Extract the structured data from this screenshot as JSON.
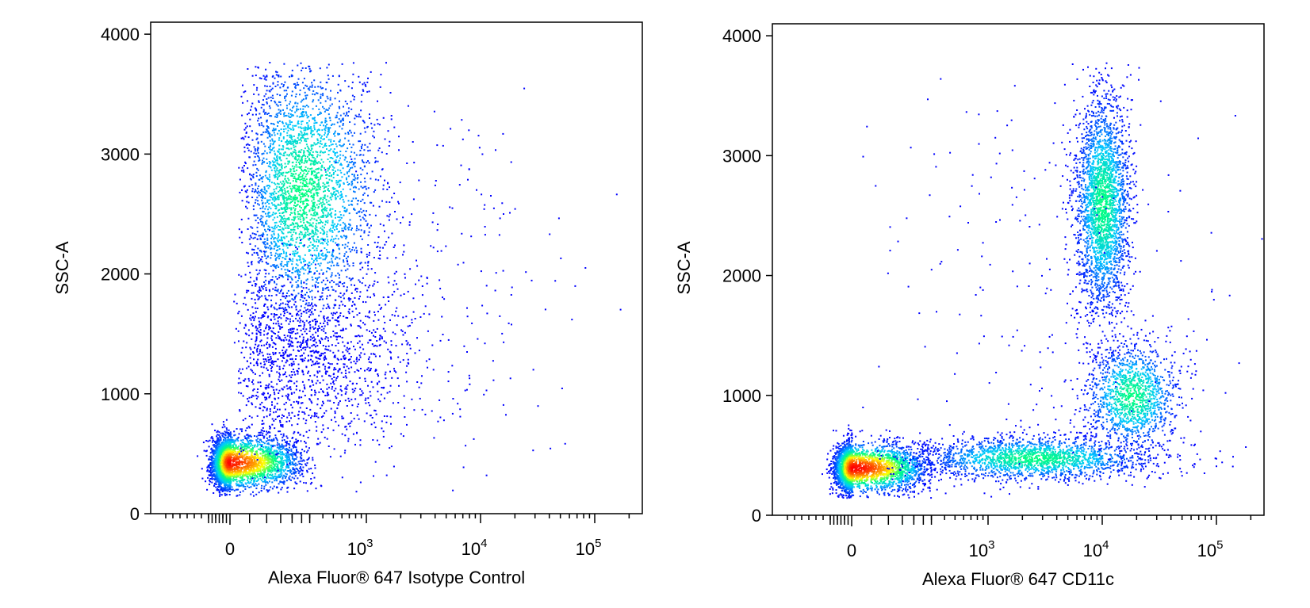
{
  "chart_data": [
    {
      "type": "scatter",
      "subtype": "flow-cytometry-density-plot",
      "xlabel": "Alexa Fluor® 647 Isotype Control",
      "ylabel": "SSC-A",
      "x_scale": "biexponential",
      "xlim": [
        -1000,
        250000
      ],
      "ylim": [
        0,
        4100
      ],
      "x_ticks": [
        {
          "value": 0,
          "base": "0",
          "exp": ""
        },
        {
          "value": 1000,
          "base": "10",
          "exp": "3"
        },
        {
          "value": 10000,
          "base": "10",
          "exp": "4"
        },
        {
          "value": 100000,
          "base": "10",
          "exp": "5"
        }
      ],
      "y_ticks": [
        {
          "value": 0,
          "label": "0"
        },
        {
          "value": 1000,
          "label": "1000"
        },
        {
          "value": 2000,
          "label": "2000"
        },
        {
          "value": 3000,
          "label": "3000"
        },
        {
          "value": 4000,
          "label": "4000"
        }
      ],
      "grid": false,
      "colormap": [
        "#0000ff",
        "#00c8ff",
        "#00ff80",
        "#ffff00",
        "#ff8000",
        "#ff0000"
      ],
      "populations": [
        {
          "x_center": -20,
          "y_center": 430,
          "x_spread_log": 0.28,
          "y_spread": 110,
          "count": 3500,
          "peak_color": "#ff0000"
        },
        {
          "x_center": 250,
          "y_center": 2700,
          "x_spread_log": 0.35,
          "y_spread": 550,
          "count": 3200,
          "peak_color": "#40ff80"
        },
        {
          "x_center": 300,
          "y_center": 1300,
          "x_spread_log": 0.5,
          "y_spread": 400,
          "count": 1400,
          "peak_color": "#0000ff"
        },
        {
          "x_center": 5000,
          "y_center": 2000,
          "x_spread_log": 0.6,
          "y_spread": 1000,
          "count": 180,
          "peak_color": "#0000ff"
        }
      ]
    },
    {
      "type": "scatter",
      "subtype": "flow-cytometry-density-plot",
      "xlabel": "Alexa Fluor® 647 CD11c",
      "ylabel": "SSC-A",
      "x_scale": "biexponential",
      "xlim": [
        -1000,
        250000
      ],
      "ylim": [
        0,
        4100
      ],
      "x_ticks": [
        {
          "value": 0,
          "base": "0",
          "exp": ""
        },
        {
          "value": 1000,
          "base": "10",
          "exp": "3"
        },
        {
          "value": 10000,
          "base": "10",
          "exp": "4"
        },
        {
          "value": 100000,
          "base": "10",
          "exp": "5"
        }
      ],
      "y_ticks": [
        {
          "value": 0,
          "label": "0"
        },
        {
          "value": 1000,
          "label": "1000"
        },
        {
          "value": 2000,
          "label": "2000"
        },
        {
          "value": 3000,
          "label": "3000"
        },
        {
          "value": 4000,
          "label": "4000"
        }
      ],
      "grid": false,
      "colormap": [
        "#0000ff",
        "#00c8ff",
        "#00ff80",
        "#ffff00",
        "#ff8000",
        "#ff0000"
      ],
      "populations": [
        {
          "x_center": 0,
          "y_center": 400,
          "x_spread_log": 0.28,
          "y_spread": 100,
          "count": 3200,
          "peak_color": "#ff0000"
        },
        {
          "x_center": 2500,
          "y_center": 480,
          "x_spread_log": 0.5,
          "y_spread": 90,
          "count": 2000,
          "peak_color": "#00ff80"
        },
        {
          "x_center": 10000,
          "y_center": 2600,
          "x_spread_log": 0.12,
          "y_spread": 450,
          "count": 2800,
          "peak_color": "#00ff80"
        },
        {
          "x_center": 18000,
          "y_center": 1000,
          "x_spread_log": 0.2,
          "y_spread": 220,
          "count": 1400,
          "peak_color": "#00ff80"
        },
        {
          "x_center": 3000,
          "y_center": 2000,
          "x_spread_log": 0.9,
          "y_spread": 1000,
          "count": 220,
          "peak_color": "#0000ff"
        }
      ]
    }
  ]
}
